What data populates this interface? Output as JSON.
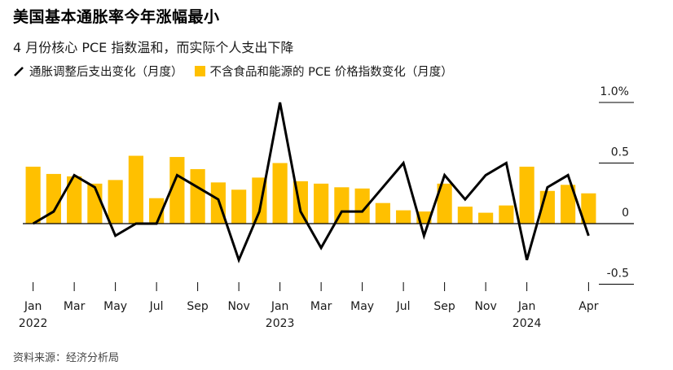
{
  "header": {
    "title": "美国基本通胀率今年涨幅最小",
    "subtitle": "4 月份核心 PCE 指数温和，而实际个人支出下降"
  },
  "legend": {
    "line_label": "通胀调整后支出变化（月度）",
    "bar_label": "不含食品和能源的 PCE 价格指数变化（月度）"
  },
  "source": "资料来源：经济分析局",
  "colors": {
    "bar": "#FFC000",
    "line": "#000000",
    "axis": "#000000"
  },
  "chart_data": {
    "type": "bar",
    "categories": [
      "2022-01",
      "2022-02",
      "2022-03",
      "2022-04",
      "2022-05",
      "2022-06",
      "2022-07",
      "2022-08",
      "2022-09",
      "2022-10",
      "2022-11",
      "2022-12",
      "2023-01",
      "2023-02",
      "2023-03",
      "2023-04",
      "2023-05",
      "2023-06",
      "2023-07",
      "2023-08",
      "2023-09",
      "2023-10",
      "2023-11",
      "2023-12",
      "2024-01",
      "2024-02",
      "2024-03",
      "2024-04"
    ],
    "series": [
      {
        "name": "不含食品和能源的 PCE 价格指数变化（月度）",
        "type": "bar",
        "values": [
          0.47,
          0.41,
          0.39,
          0.33,
          0.36,
          0.56,
          0.21,
          0.55,
          0.45,
          0.34,
          0.28,
          0.38,
          0.5,
          0.35,
          0.33,
          0.3,
          0.29,
          0.17,
          0.11,
          0.1,
          0.33,
          0.14,
          0.09,
          0.15,
          0.47,
          0.27,
          0.32,
          0.25
        ]
      },
      {
        "name": "通胀调整后支出变化（月度）",
        "type": "line",
        "values": [
          0.0,
          0.1,
          0.4,
          0.3,
          -0.1,
          0.0,
          0.0,
          0.4,
          0.3,
          0.2,
          -0.3,
          0.1,
          1.0,
          0.1,
          -0.2,
          0.1,
          0.1,
          0.3,
          0.5,
          -0.1,
          0.4,
          0.2,
          0.4,
          0.5,
          -0.3,
          0.3,
          0.4,
          -0.1
        ]
      }
    ],
    "x_tick_labels": [
      {
        "label": "Jan",
        "year": "2022",
        "index": 0
      },
      {
        "label": "Mar",
        "index": 2
      },
      {
        "label": "May",
        "index": 4
      },
      {
        "label": "Jul",
        "index": 6
      },
      {
        "label": "Sep",
        "index": 8
      },
      {
        "label": "Nov",
        "index": 10
      },
      {
        "label": "Jan",
        "year": "2023",
        "index": 12
      },
      {
        "label": "Mar",
        "index": 14
      },
      {
        "label": "May",
        "index": 16
      },
      {
        "label": "Jul",
        "index": 18
      },
      {
        "label": "Sep",
        "index": 20
      },
      {
        "label": "Nov",
        "index": 22
      },
      {
        "label": "Jan",
        "year": "2024",
        "index": 24
      },
      {
        "label": "Apr",
        "index": 27
      }
    ],
    "y_ticks": [
      {
        "value": 1.0,
        "label": "1.0%"
      },
      {
        "value": 0.5,
        "label": "0.5"
      },
      {
        "value": 0.0,
        "label": "0"
      },
      {
        "value": -0.5,
        "label": "-0.5"
      }
    ],
    "ylim": [
      -0.55,
      1.1
    ],
    "legend_position": "top-left",
    "grid": false
  }
}
